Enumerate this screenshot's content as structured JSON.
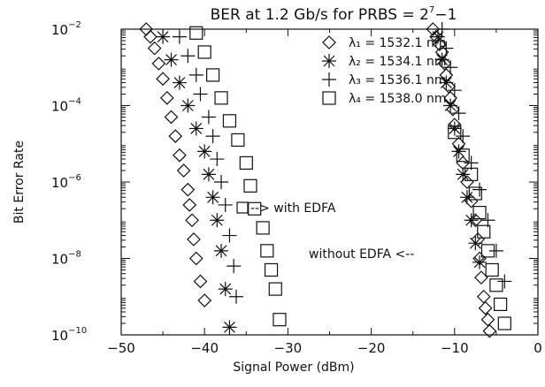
{
  "chart_data": {
    "type": "scatter",
    "title_main": "BER at 1.2 Gb/s for PRBS = 2",
    "title_exp": "7",
    "title_tail": "−1",
    "xlabel": "Signal Power (dBm)",
    "ylabel": "Bit Error Rate",
    "xlim": [
      -50,
      0
    ],
    "ylim_log10": [
      -10,
      -2
    ],
    "yscale": "log",
    "grid": false,
    "legend_position": "top-right",
    "x_ticks": [
      {
        "value": -50,
        "label": "−50"
      },
      {
        "value": -40,
        "label": "−40"
      },
      {
        "value": -30,
        "label": "−30"
      },
      {
        "value": -20,
        "label": "−20"
      },
      {
        "value": -10,
        "label": "−10"
      },
      {
        "value": 0,
        "label": "0"
      }
    ],
    "y_ticks": [
      {
        "value": -2,
        "base": "10",
        "exp": "−2"
      },
      {
        "value": -4,
        "base": "10",
        "exp": "−4"
      },
      {
        "value": -6,
        "base": "10",
        "exp": "−6"
      },
      {
        "value": -8,
        "base": "10",
        "exp": "−8"
      },
      {
        "value": -10,
        "base": "10",
        "exp": "−10"
      }
    ],
    "legend": [
      {
        "symbol": "◇",
        "text": "λ₁ = 1532.1 nm"
      },
      {
        "symbol": "*",
        "text": "λ₂ = 1534.1 nm"
      },
      {
        "symbol": "+",
        "text": "λ₃ = 1536.1 nm"
      },
      {
        "symbol": "□",
        "text": "λ₄ = 1538.0 nm"
      }
    ],
    "annotations": [
      {
        "text": "--> with EDFA"
      },
      {
        "text": "without EDFA <--"
      }
    ],
    "series": [
      {
        "name": "λ₁ = 1532.1 nm",
        "marker": "diamond",
        "x": [
          -47.0,
          -46.5,
          -46.0,
          -45.5,
          -45.0,
          -44.5,
          -44.0,
          -43.5,
          -43.0,
          -42.5,
          -42.0,
          -41.8,
          -41.5,
          -41.3,
          -41.0,
          -40.5,
          -40.0,
          -12.6,
          -12.2,
          -11.8,
          -11.5,
          -11.2,
          -11.0,
          -10.7,
          -10.5,
          -10.2,
          -10.0,
          -9.5,
          -9.0,
          -8.5,
          -8.0,
          -7.5,
          -7.2,
          -7.0,
          -6.8,
          -6.5,
          -6.3,
          -6.0,
          -5.8
        ],
        "y": [
          -2.0,
          -2.2,
          -2.5,
          -2.9,
          -3.3,
          -3.8,
          -4.3,
          -4.8,
          -5.3,
          -5.7,
          -6.2,
          -6.6,
          -7.0,
          -7.5,
          -8.0,
          -8.6,
          -9.1,
          -2.0,
          -2.2,
          -2.4,
          -2.6,
          -2.9,
          -3.2,
          -3.5,
          -3.8,
          -4.1,
          -4.5,
          -5.0,
          -5.5,
          -6.0,
          -6.5,
          -7.0,
          -7.5,
          -8.0,
          -8.5,
          -9.0,
          -9.3,
          -9.6,
          -9.9
        ]
      },
      {
        "name": "λ₂ = 1534.1 nm",
        "marker": "asterisk",
        "x": [
          -45.0,
          -44.0,
          -43.0,
          -42.0,
          -41.0,
          -40.0,
          -39.5,
          -39.0,
          -38.5,
          -38.0,
          -37.5,
          -37.0,
          -12.0,
          -11.5,
          -11.0,
          -10.5,
          -10.0,
          -9.5,
          -9.0,
          -8.5,
          -8.0,
          -7.5,
          -7.0
        ],
        "y": [
          -2.2,
          -2.8,
          -3.4,
          -4.0,
          -4.6,
          -5.2,
          -5.8,
          -6.4,
          -7.0,
          -7.8,
          -8.8,
          -9.8,
          -2.2,
          -2.8,
          -3.4,
          -4.0,
          -4.6,
          -5.2,
          -5.8,
          -6.4,
          -7.0,
          -7.6,
          -8.1
        ]
      },
      {
        "name": "λ₃ = 1536.1 nm",
        "marker": "plus",
        "x": [
          -43.0,
          -42.0,
          -41.0,
          -40.5,
          -39.5,
          -39.0,
          -38.5,
          -38.0,
          -37.5,
          -37.0,
          -36.5,
          -36.2,
          -11.5,
          -11.0,
          -10.5,
          -10.0,
          -9.5,
          -9.0,
          -8.0,
          -7.0,
          -6.0,
          -5.0,
          -4.0
        ],
        "y": [
          -2.2,
          -2.7,
          -3.2,
          -3.7,
          -4.3,
          -4.8,
          -5.4,
          -6.0,
          -6.6,
          -7.4,
          -8.2,
          -9.0,
          -2.0,
          -2.5,
          -3.0,
          -3.6,
          -4.2,
          -4.8,
          -5.5,
          -6.2,
          -7.0,
          -7.8,
          -8.6
        ]
      },
      {
        "name": "λ₄ = 1538.0 nm",
        "marker": "square",
        "x": [
          -41.0,
          -40.0,
          -39.0,
          -38.0,
          -37.0,
          -36.0,
          -35.0,
          -34.5,
          -34.0,
          -33.0,
          -32.5,
          -32.0,
          -31.5,
          -31.0,
          -10.0,
          -9.0,
          -8.0,
          -7.5,
          -7.0,
          -6.5,
          -6.0,
          -5.5,
          -5.0,
          -4.5,
          -4.0
        ],
        "y": [
          -2.1,
          -2.6,
          -3.2,
          -3.8,
          -4.4,
          -4.9,
          -5.5,
          -6.1,
          -6.7,
          -7.2,
          -7.8,
          -8.3,
          -8.8,
          -9.6,
          -4.7,
          -5.3,
          -5.8,
          -6.3,
          -6.8,
          -7.3,
          -7.8,
          -8.3,
          -8.7,
          -9.2,
          -9.7
        ]
      }
    ]
  }
}
